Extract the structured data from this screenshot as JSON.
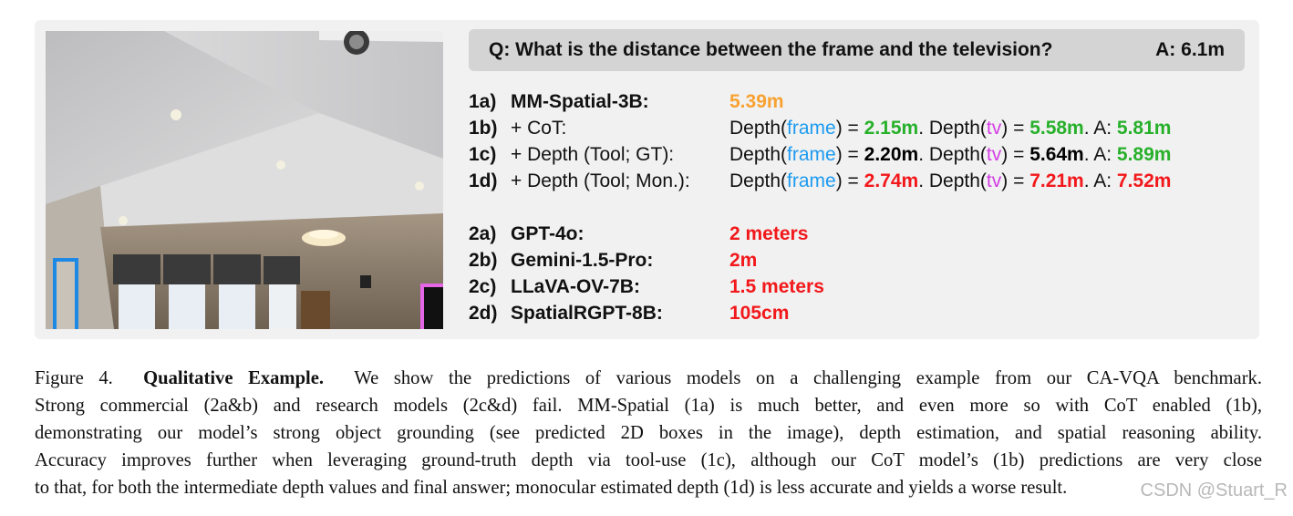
{
  "question_bar": {
    "question": "Q:  What is the distance between the frame and the television?",
    "answer": "A:  6.1m"
  },
  "results": [
    {
      "id": "1a)",
      "model": "MM-Spatial-3B:",
      "answer": "5.39m"
    },
    {
      "id": "1b)",
      "model": "+ CoT:",
      "depth_frame": "2.15m",
      "depth_tv": "5.58m",
      "answer": "5.81m"
    },
    {
      "id": "1c)",
      "model": "+ Depth (Tool; GT):",
      "depth_frame": "2.20m",
      "depth_tv": "5.64m",
      "answer": "5.89m"
    },
    {
      "id": "1d)",
      "model": "+ Depth (Tool; Mon.):",
      "depth_frame": "2.74m",
      "depth_tv": "7.21m",
      "answer": "7.52m"
    },
    {
      "id": "2a)",
      "model": "GPT-4o:",
      "answer": "2 meters"
    },
    {
      "id": "2b)",
      "model": "Gemini-1.5-Pro:",
      "answer": "2m"
    },
    {
      "id": "2c)",
      "model": "LLaVA-OV-7B:",
      "answer": "1.5 meters"
    },
    {
      "id": "2d)",
      "model": "SpatialRGPT-8B:",
      "answer": "105cm"
    }
  ],
  "labels": {
    "depth": "Depth(",
    "frame": "frame",
    "tv": "tv",
    "close_eq": ") = ",
    "sep": ". ",
    "answer_prefix": ". A:  "
  },
  "colors": {
    "frame_box": "#1e88e5",
    "tv_box": "#e666e8",
    "correct": "#27b02a",
    "wrong": "#f2181b",
    "base": "#f7a232"
  },
  "caption": {
    "figure_label": "Figure 4.",
    "title": "Qualitative Example.",
    "line1_rest": "We show the predictions of various models on a challenging example from our CA-VQA benchmark.",
    "line2": "Strong commercial (2a&b) and research models (2c&d) fail.  MM-Spatial (1a) is much better, and even more so with CoT enabled (1b),",
    "line3": "demonstrating our model’s strong object grounding (see predicted 2D boxes in the image), depth estimation, and spatial reasoning ability.",
    "line4": "Accuracy improves further when leveraging ground-truth depth via tool-use (1c), although our CoT model’s (1b) predictions are very close",
    "line5": "to that, for both the intermediate depth values and final answer; monocular estimated depth (1d) is less accurate and yields a worse result."
  },
  "watermark": "CSDN @Stuart_R"
}
